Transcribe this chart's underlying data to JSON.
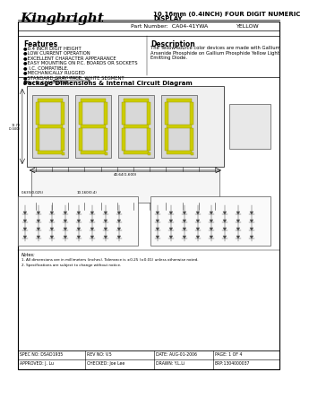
{
  "company": "Kingbright",
  "title_line1": "10.16mm (0.4INCH) FOUR DIGIT NUMERIC",
  "title_line2": "DISPLAY",
  "part_number_label": "Part Number:",
  "part_number": "CA04-41YWA",
  "color_label": "YELLOW",
  "features_title": "Features",
  "features": [
    "●0.4 INCH DIGIT HEIGHT",
    "●LOW CURRENT OPERATION",
    "●EXCELLENT CHARACTER APPEARANCE",
    "●EASY MOUNTING ON P.C. BOARDS OR SOCKETS",
    "● I.C. COMPATIBLE.",
    "●MECHANICALLY RUGGED",
    "●STANDARD GRAY  FACE, WHITE SEGMENT",
    "●RoHS COMPLIANT"
  ],
  "description_title": "Description",
  "description_lines": [
    "The Yellow source color devices are made with Gallium",
    "Arsenide Phosphide on Gallium Phosphide Yellow Light",
    "Emitting Diode."
  ],
  "diagram_title": "Package Dimensions & Internal Circuit Diagram",
  "notes_title": "Notes:",
  "notes": [
    "1. All dimensions are in millimeters (inches). Tolerance is ±0.25 (±0.01) unless otherwise noted.",
    "2. Specifications are subject to change without notice."
  ],
  "footer_spec": "SPEC NO: DSAD1935",
  "footer_rev": "REV NO: V.5",
  "footer_date": "DATE: AUG-01-2006",
  "footer_page": "PAGE: 1 OF 4",
  "footer_approved": "APPROVED: J. Lu",
  "footer_checked": "CHECKED: Joe Lee",
  "footer_drawn": "DRAWN: Y.L.Li",
  "footer_erp": "ERP:1304000037",
  "bg_color": "#ffffff",
  "border_color": "#000000",
  "text_color": "#000000"
}
